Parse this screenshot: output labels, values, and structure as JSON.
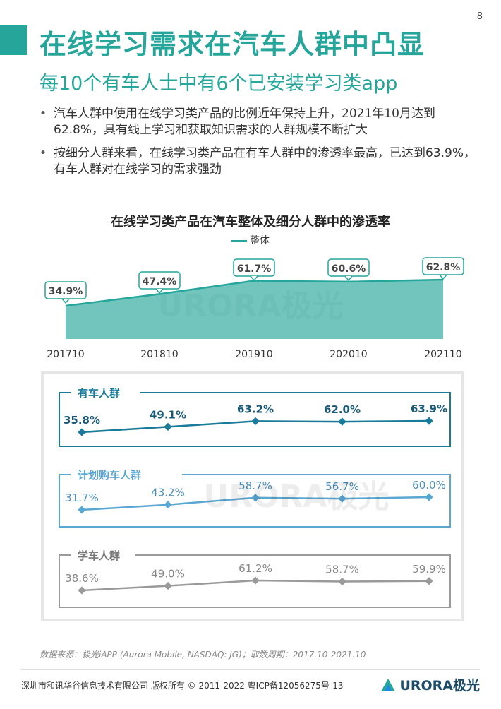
{
  "page_number": "8",
  "title": "在线学习需求在汽车人群中凸显",
  "subtitle": "每10个有车人士中有6个已安装学习类app",
  "bullets": [
    "汽车人群中使用在线学习类产品的比例近年保持上升，2021年10月达到62.8%，具有线上学习和获取知识需求的人群规模不断扩大",
    "按细分人群来看，在线学习类产品在有车人群中的渗透率最高，已达到63.9%，有车人群对在线学习的需求强劲"
  ],
  "chart_data": [
    {
      "type": "area",
      "title": "在线学习类产品在汽车整体及细分人群中的渗透率",
      "legend_position": "top-center",
      "x": [
        "201710",
        "201810",
        "201910",
        "202010",
        "202110"
      ],
      "series": [
        {
          "name": "整体",
          "values": [
            34.9,
            47.4,
            61.7,
            60.6,
            62.8
          ],
          "labels": [
            "34.9%",
            "47.4%",
            "61.7%",
            "60.6%",
            "62.8%"
          ],
          "color": "#26a69a"
        }
      ]
    },
    {
      "type": "line",
      "x": [
        "201710",
        "201810",
        "201910",
        "202010",
        "202110"
      ],
      "series": [
        {
          "name": "有车人群",
          "values": [
            35.8,
            49.1,
            63.2,
            62.0,
            63.9
          ],
          "labels": [
            "35.8%",
            "49.1%",
            "63.2%",
            "62.0%",
            "63.9%"
          ],
          "color": "#1a7a9a"
        },
        {
          "name": "计划购车人群",
          "values": [
            31.7,
            43.2,
            58.7,
            56.7,
            60.0
          ],
          "labels": [
            "31.7%",
            "43.2%",
            "58.7%",
            "56.7%",
            "60.0%"
          ],
          "color": "#5aa7d1"
        },
        {
          "name": "学车人群",
          "values": [
            38.6,
            49.0,
            61.2,
            58.7,
            59.9
          ],
          "labels": [
            "38.6%",
            "49.0%",
            "61.2%",
            "58.7%",
            "59.9%"
          ],
          "color": "#9a9a9a"
        }
      ]
    }
  ],
  "watermark": "URORA极光",
  "source": "数据来源：极光iAPP (Aurora Mobile, NASDAQ: JG)；取数周期：2017.10-2021.10",
  "footer": "深圳市和讯华谷信息技术有限公司 版权所有 © 2011-2022 粤ICP备12056275号-13",
  "logo": {
    "text": "URORA极光",
    "color": "#1e4d6b"
  }
}
